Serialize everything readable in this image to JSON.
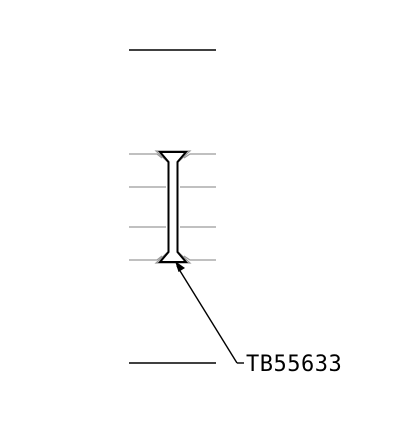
{
  "diagram": {
    "part_number_label": "TB55633",
    "colors": {
      "background": "#ffffff",
      "line": "#000000",
      "secondary_line": "#9a9a9a"
    }
  }
}
